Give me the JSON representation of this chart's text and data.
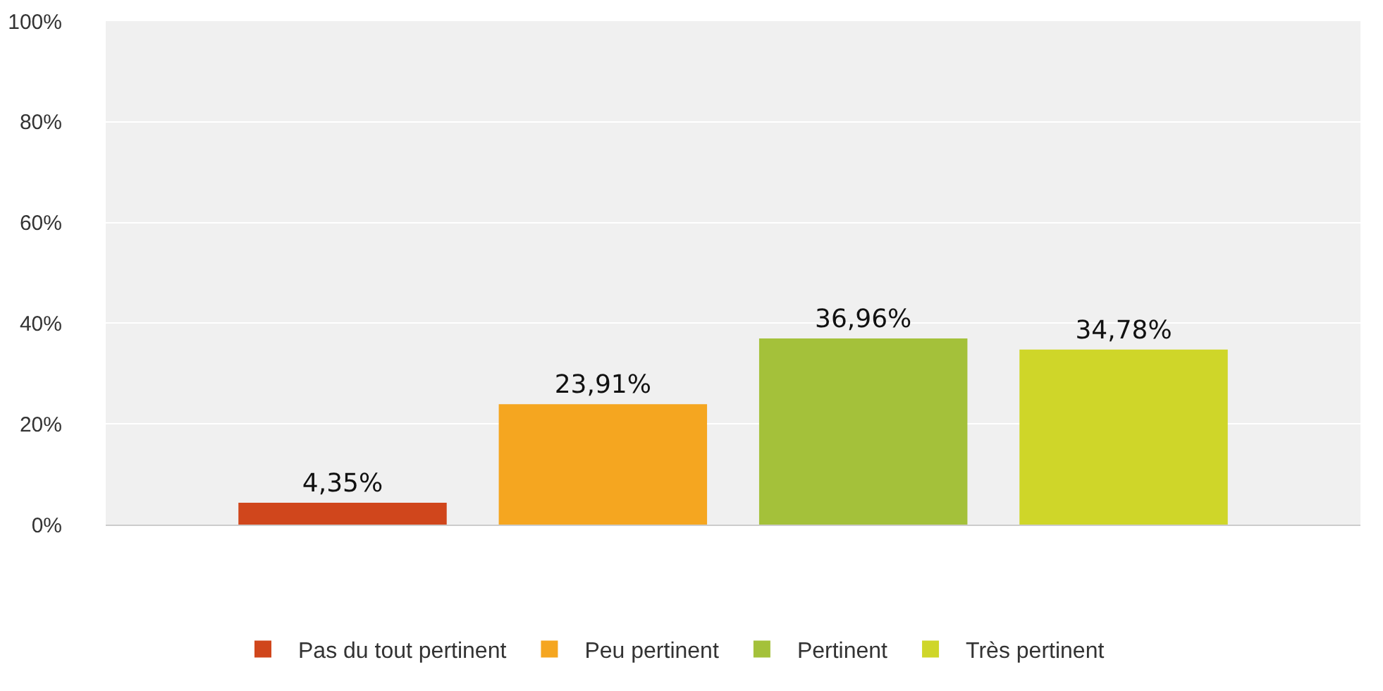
{
  "chart_data": {
    "type": "bar",
    "categories": [
      null
    ],
    "series": [
      {
        "name": "Pas du tout pertinent",
        "color": "#d0461c",
        "values": [
          4.35
        ],
        "value_labels": [
          "4,35%"
        ]
      },
      {
        "name": "Peu pertinent",
        "color": "#f5a620",
        "values": [
          23.91
        ],
        "value_labels": [
          "23,91%"
        ]
      },
      {
        "name": "Pertinent",
        "color": "#a4c13a",
        "values": [
          36.96
        ],
        "value_labels": [
          "36,96%"
        ]
      },
      {
        "name": "Très pertinent",
        "color": "#cfd629",
        "values": [
          34.78
        ],
        "value_labels": [
          "34,78%"
        ]
      }
    ],
    "ylim": [
      0,
      100
    ],
    "yticks": [
      {
        "value": 0,
        "label": "0%"
      },
      {
        "value": 20,
        "label": "20%"
      },
      {
        "value": 40,
        "label": "40%"
      },
      {
        "value": 60,
        "label": "60%"
      },
      {
        "value": 80,
        "label": "80%"
      },
      {
        "value": 100,
        "label": "100%"
      }
    ],
    "grid": "y",
    "legend": "bottom"
  }
}
